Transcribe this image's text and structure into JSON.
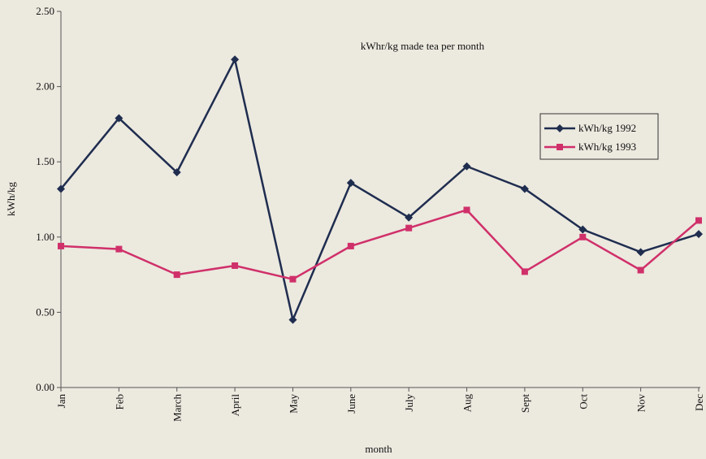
{
  "chart_data": {
    "type": "line",
    "title": "kWhr/kg made tea per month",
    "x_label": "month",
    "y_label": "kWh/kg",
    "categories": [
      "Jan",
      "Feb",
      "March",
      "April",
      "May",
      "June",
      "July",
      "Aug",
      "Sept",
      "Oct",
      "Nov",
      "Dec"
    ],
    "series": [
      {
        "name": "kWh/kg 1992",
        "color": "#1f2d4f",
        "marker": "diamond",
        "values": [
          1.32,
          1.79,
          1.43,
          2.18,
          0.45,
          1.36,
          1.13,
          1.47,
          1.32,
          1.05,
          0.9,
          1.02
        ]
      },
      {
        "name": "kWh/kg 1993",
        "color": "#d0306a",
        "marker": "square",
        "values": [
          0.94,
          0.92,
          0.75,
          0.81,
          0.72,
          0.94,
          1.06,
          1.18,
          0.77,
          1.0,
          0.78,
          1.11
        ]
      }
    ],
    "ylim": [
      0,
      2.5
    ],
    "yticks": [
      {
        "value": 0,
        "label": "0.00"
      },
      {
        "value": 0.5,
        "label": "0.50"
      },
      {
        "value": 1,
        "label": "1.00"
      },
      {
        "value": 1.5,
        "label": "1.50"
      },
      {
        "value": 2,
        "label": "2.00"
      },
      {
        "value": 2.5,
        "label": "2.50"
      }
    ],
    "grid": false,
    "legend": "right"
  }
}
